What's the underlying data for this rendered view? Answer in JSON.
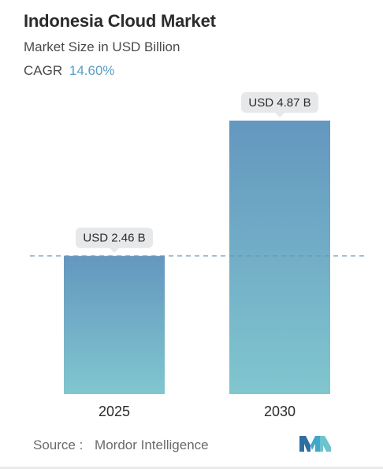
{
  "header": {
    "title": "Indonesia Cloud Market",
    "subtitle": "Market Size in USD Billion",
    "cagr_label": "CAGR",
    "cagr_value": "14.60%"
  },
  "chart_data": {
    "type": "bar",
    "categories": [
      "2025",
      "2030"
    ],
    "values": [
      2.46,
      4.87
    ],
    "value_labels": [
      "USD 2.46 B",
      "USD 4.87 B"
    ],
    "ylim": [
      0,
      4.87
    ],
    "grid": false,
    "reference_line": 2.46,
    "colors": {
      "bar_top": "#6497bf",
      "bar_bottom": "#80c6cf",
      "reference_line": "#6f94ad",
      "label_bg": "#e6e8ea"
    }
  },
  "footer": {
    "source_label": "Source :",
    "source_name": "Mordor Intelligence",
    "logo_icon": "mordor-intelligence-logo"
  }
}
